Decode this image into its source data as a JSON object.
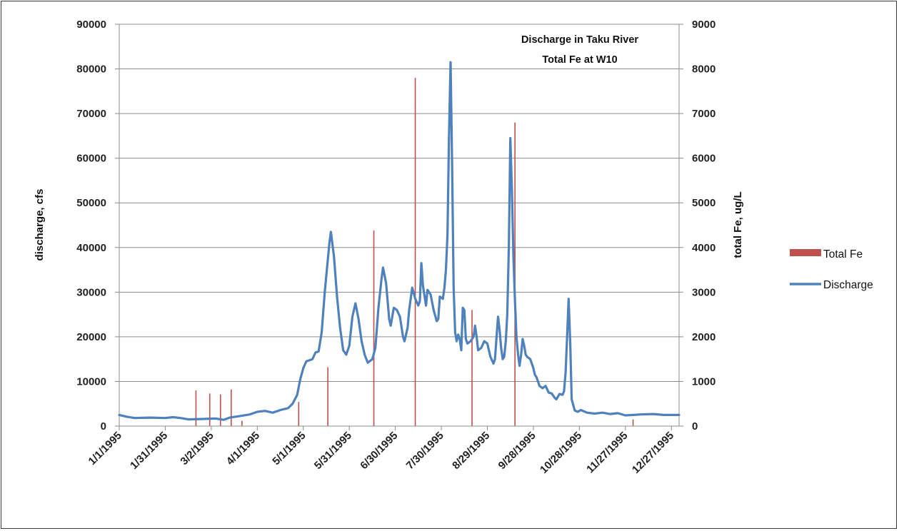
{
  "chart_data": {
    "type": "line",
    "title_lines": [
      "Discharge in Taku River",
      "Total Fe at W10"
    ],
    "ylabel": "discharge, cfs",
    "y2label": "total Fe, ug/L",
    "ylim": [
      0,
      90000
    ],
    "y2lim": [
      0,
      9000
    ],
    "xlim": [
      0,
      365
    ],
    "yticks": [
      "0",
      "10000",
      "20000",
      "30000",
      "40000",
      "50000",
      "60000",
      "70000",
      "80000",
      "90000"
    ],
    "y2ticks": [
      "0",
      "1000",
      "2000",
      "3000",
      "4000",
      "5000",
      "6000",
      "7000",
      "8000",
      "9000"
    ],
    "xticks": [
      {
        "label": "1/1/1995",
        "day": 0
      },
      {
        "label": "1/31/1995",
        "day": 30
      },
      {
        "label": "3/2/1995",
        "day": 60
      },
      {
        "label": "4/1/1995",
        "day": 90
      },
      {
        "label": "5/1/1995",
        "day": 120
      },
      {
        "label": "5/31/1995",
        "day": 150
      },
      {
        "label": "6/30/1995",
        "day": 180
      },
      {
        "label": "7/30/1995",
        "day": 210
      },
      {
        "label": "8/29/1995",
        "day": 240
      },
      {
        "label": "9/28/1995",
        "day": 270
      },
      {
        "label": "10/28/1995",
        "day": 300
      },
      {
        "label": "11/27/1995",
        "day": 330
      },
      {
        "label": "12/27/1995",
        "day": 360
      }
    ],
    "legend_placement": "right",
    "grid": true,
    "series": [
      {
        "name": "Total Fe",
        "axis": "right",
        "kind": "bar",
        "color": "#C0504D",
        "points": [
          [
            50,
            800
          ],
          [
            59,
            730
          ],
          [
            66,
            710
          ],
          [
            73,
            820
          ],
          [
            80,
            120
          ],
          [
            117,
            540
          ],
          [
            136,
            1320
          ],
          [
            166,
            4380
          ],
          [
            193,
            7800
          ],
          [
            230,
            2600
          ],
          [
            258,
            6800
          ],
          [
            335,
            150
          ]
        ]
      },
      {
        "name": "Discharge",
        "axis": "left",
        "kind": "line",
        "color": "#4F81BD",
        "points": [
          [
            0,
            2500
          ],
          [
            5,
            2100
          ],
          [
            10,
            1800
          ],
          [
            20,
            1900
          ],
          [
            30,
            1800
          ],
          [
            35,
            2000
          ],
          [
            40,
            1800
          ],
          [
            45,
            1500
          ],
          [
            55,
            1600
          ],
          [
            63,
            1700
          ],
          [
            68,
            1400
          ],
          [
            72,
            1900
          ],
          [
            78,
            2200
          ],
          [
            85,
            2600
          ],
          [
            90,
            3200
          ],
          [
            95,
            3400
          ],
          [
            100,
            3000
          ],
          [
            106,
            3700
          ],
          [
            110,
            4000
          ],
          [
            113,
            5000
          ],
          [
            116,
            7000
          ],
          [
            118,
            10500
          ],
          [
            120,
            13000
          ],
          [
            122,
            14500
          ],
          [
            126,
            15000
          ],
          [
            128,
            16500
          ],
          [
            130,
            16700
          ],
          [
            132,
            21000
          ],
          [
            134,
            30000
          ],
          [
            137,
            41000
          ],
          [
            138,
            43500
          ],
          [
            140,
            38000
          ],
          [
            142,
            29000
          ],
          [
            144,
            22000
          ],
          [
            146,
            17000
          ],
          [
            148,
            16000
          ],
          [
            150,
            18000
          ],
          [
            152,
            24500
          ],
          [
            154,
            27500
          ],
          [
            156,
            24000
          ],
          [
            158,
            19000
          ],
          [
            160,
            16000
          ],
          [
            162,
            14200
          ],
          [
            165,
            15000
          ],
          [
            167,
            17500
          ],
          [
            169,
            26500
          ],
          [
            171,
            33000
          ],
          [
            172,
            35500
          ],
          [
            174,
            32000
          ],
          [
            176,
            24000
          ],
          [
            177,
            22500
          ],
          [
            179,
            26500
          ],
          [
            181,
            26000
          ],
          [
            183,
            24500
          ],
          [
            185,
            20000
          ],
          [
            186,
            19000
          ],
          [
            188,
            22000
          ],
          [
            189,
            26000
          ],
          [
            191,
            31000
          ],
          [
            193,
            28500
          ],
          [
            195,
            27000
          ],
          [
            196,
            28000
          ],
          [
            197,
            36500
          ],
          [
            198,
            31500
          ],
          [
            200,
            27000
          ],
          [
            201,
            30500
          ],
          [
            203,
            29500
          ],
          [
            205,
            26000
          ],
          [
            207,
            23500
          ],
          [
            208,
            24000
          ],
          [
            209,
            29000
          ],
          [
            211,
            28500
          ],
          [
            212,
            31000
          ],
          [
            213,
            35000
          ],
          [
            214,
            43000
          ],
          [
            215,
            65000
          ],
          [
            216,
            81500
          ],
          [
            217,
            59000
          ],
          [
            218,
            31000
          ],
          [
            219,
            21000
          ],
          [
            220,
            19000
          ],
          [
            221,
            20500
          ],
          [
            222,
            19500
          ],
          [
            223,
            17000
          ],
          [
            224,
            26500
          ],
          [
            225,
            26000
          ],
          [
            226,
            19500
          ],
          [
            227,
            18500
          ],
          [
            229,
            19000
          ],
          [
            231,
            20000
          ],
          [
            232,
            22500
          ],
          [
            233,
            20000
          ],
          [
            234,
            17000
          ],
          [
            236,
            17500
          ],
          [
            238,
            19000
          ],
          [
            240,
            18500
          ],
          [
            242,
            15500
          ],
          [
            244,
            14000
          ],
          [
            245,
            15000
          ],
          [
            246,
            20000
          ],
          [
            247,
            24500
          ],
          [
            248,
            21500
          ],
          [
            249,
            17500
          ],
          [
            250,
            15000
          ],
          [
            251,
            15500
          ],
          [
            252,
            19000
          ],
          [
            253,
            25000
          ],
          [
            254,
            40000
          ],
          [
            255,
            64500
          ],
          [
            256,
            53000
          ],
          [
            257,
            38000
          ],
          [
            258,
            28000
          ],
          [
            259,
            20000
          ],
          [
            260,
            16000
          ],
          [
            261,
            13500
          ],
          [
            262,
            16000
          ],
          [
            263,
            19500
          ],
          [
            264,
            18000
          ],
          [
            265,
            16000
          ],
          [
            266,
            15500
          ],
          [
            268,
            15000
          ],
          [
            270,
            13000
          ],
          [
            271,
            11500
          ],
          [
            272,
            11000
          ],
          [
            273,
            10000
          ],
          [
            274,
            9000
          ],
          [
            276,
            8500
          ],
          [
            278,
            9000
          ],
          [
            280,
            7500
          ],
          [
            282,
            7300
          ],
          [
            284,
            6300
          ],
          [
            285,
            6000
          ],
          [
            287,
            7200
          ],
          [
            289,
            7000
          ],
          [
            290,
            7800
          ],
          [
            291,
            12000
          ],
          [
            292,
            20000
          ],
          [
            293,
            28500
          ],
          [
            294,
            19000
          ],
          [
            295,
            6000
          ],
          [
            297,
            3500
          ],
          [
            299,
            3200
          ],
          [
            301,
            3600
          ],
          [
            305,
            3000
          ],
          [
            310,
            2800
          ],
          [
            315,
            3000
          ],
          [
            320,
            2700
          ],
          [
            325,
            2900
          ],
          [
            330,
            2400
          ],
          [
            335,
            2500
          ],
          [
            340,
            2600
          ],
          [
            348,
            2700
          ],
          [
            355,
            2500
          ],
          [
            365,
            2500
          ]
        ]
      }
    ]
  }
}
